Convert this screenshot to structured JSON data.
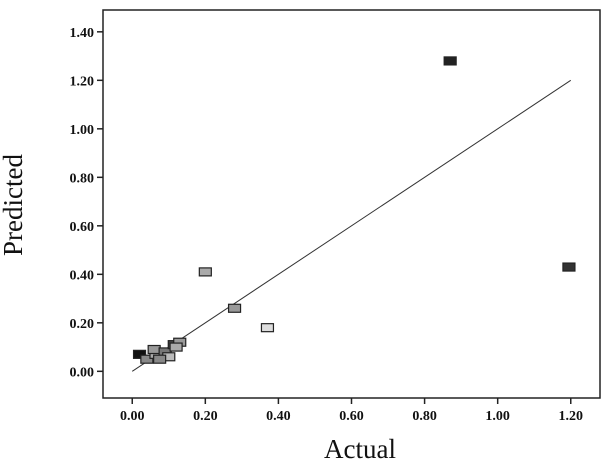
{
  "chart_data": {
    "type": "scatter",
    "x_label": "Actual",
    "y_label": "Predicted",
    "series": [
      {
        "color": "#555555",
        "point_colors": [
          "#222222",
          "#333333",
          "#aaaaaa",
          "#999999",
          "#dddddd",
          "#111111",
          "#888888",
          "#aaaaaa",
          "#999999",
          "#777777",
          "#bbbbbb",
          "#444444",
          "#999999",
          "#aaaaaa",
          "#888888"
        ],
        "x": [
          0.87,
          1.195,
          0.2,
          0.28,
          0.37,
          0.02,
          0.04,
          0.065,
          0.06,
          0.09,
          0.1,
          0.115,
          0.13,
          0.12,
          0.075
        ],
        "values": [
          1.28,
          0.43,
          0.41,
          0.26,
          0.18,
          0.07,
          0.05,
          0.07,
          0.09,
          0.08,
          0.06,
          0.11,
          0.12,
          0.1,
          0.05
        ]
      }
    ],
    "line": {
      "color": "#333333",
      "x": [
        0,
        1.2
      ],
      "values": [
        0,
        1.2
      ]
    },
    "xlim": [
      -0.08,
      1.28
    ],
    "ylim": [
      -0.11,
      1.49
    ],
    "xticks": [
      {
        "value": 0,
        "label": "0.00"
      },
      {
        "value": 0.2,
        "label": "0.20"
      },
      {
        "value": 0.4,
        "label": "0.40"
      },
      {
        "value": 0.6,
        "label": "0.60"
      },
      {
        "value": 0.8,
        "label": "0.80"
      },
      {
        "value": 1.0,
        "label": "1.00"
      },
      {
        "value": 1.2,
        "label": "1.20"
      }
    ],
    "yticks": [
      {
        "value": 0,
        "label": "0.00"
      },
      {
        "value": 0.2,
        "label": "0.20"
      },
      {
        "value": 0.4,
        "label": "0.40"
      },
      {
        "value": 0.6,
        "label": "0.60"
      },
      {
        "value": 0.8,
        "label": "0.80"
      },
      {
        "value": 1.0,
        "label": "1.00"
      },
      {
        "value": 1.2,
        "label": "1.20"
      },
      {
        "value": 1.4,
        "label": "1.40"
      }
    ]
  }
}
